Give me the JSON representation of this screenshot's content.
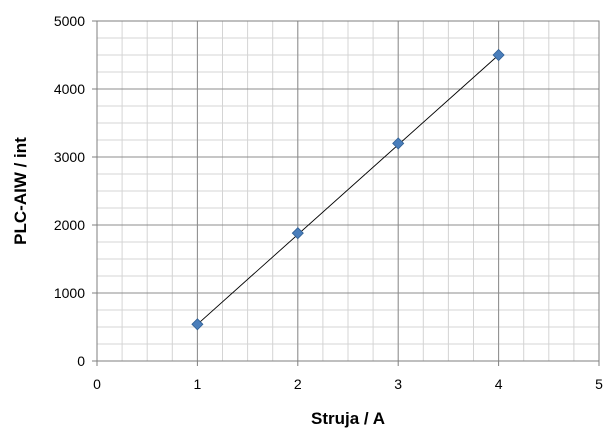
{
  "chart_data": {
    "type": "scatter",
    "title": "",
    "xlabel": "Struja / A",
    "ylabel": "PLC-AIW / int",
    "xlim": [
      0,
      5
    ],
    "ylim": [
      0,
      5000
    ],
    "x_ticks": [
      0,
      1,
      2,
      3,
      4,
      5
    ],
    "y_ticks": [
      0,
      1000,
      2000,
      3000,
      4000,
      5000
    ],
    "x_minor_step": 0.25,
    "y_minor_step": 250,
    "grid": true,
    "series": [
      {
        "x": [
          1,
          2,
          3,
          4
        ],
        "values": [
          540,
          1880,
          3200,
          4500
        ],
        "marker": "diamond",
        "color": "#4a7ebb",
        "marker_outline": "#2f5f94"
      }
    ],
    "trendline": {
      "type": "linear",
      "x": [
        1,
        4
      ],
      "values": [
        540,
        4500
      ],
      "color": "#000000"
    }
  }
}
